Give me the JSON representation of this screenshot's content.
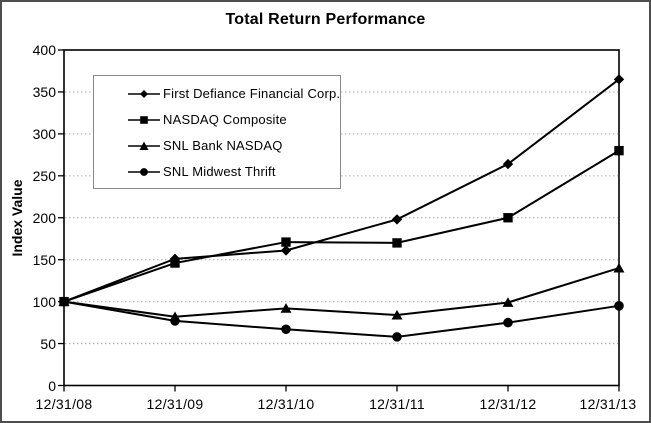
{
  "chart_data": {
    "type": "line",
    "title": "Total Return Performance",
    "ylabel": "Index Value",
    "xlabel": "",
    "ylim": [
      0,
      400
    ],
    "y_ticks": [
      0,
      50,
      100,
      150,
      200,
      250,
      300,
      350,
      400
    ],
    "categories": [
      "12/31/08",
      "12/31/09",
      "12/31/10",
      "12/31/11",
      "12/31/12",
      "12/31/13"
    ],
    "grid": "horizontal-dotted",
    "legend_position": "inside-top-left",
    "series": [
      {
        "name": "First Defiance Financial Corp.",
        "marker": "diamond",
        "color": "#000000",
        "values": [
          100,
          151,
          161,
          198,
          264,
          365
        ]
      },
      {
        "name": "NASDAQ Composite",
        "marker": "square",
        "color": "#000000",
        "values": [
          100,
          146,
          171,
          170,
          200,
          280
        ]
      },
      {
        "name": "SNL Bank NASDAQ",
        "marker": "triangle",
        "color": "#000000",
        "values": [
          100,
          82,
          92,
          84,
          99,
          140
        ]
      },
      {
        "name": "SNL Midwest Thrift",
        "marker": "circle",
        "color": "#000000",
        "values": [
          100,
          77,
          67,
          58,
          75,
          95
        ]
      }
    ]
  },
  "colors": {
    "series": "#000000",
    "gridline": "#adadad",
    "plot_border": "#000000",
    "legend_border": "#8a8a8a",
    "frame_border": "#4e4e4e",
    "background": "#ffffff",
    "text": "#000000"
  }
}
